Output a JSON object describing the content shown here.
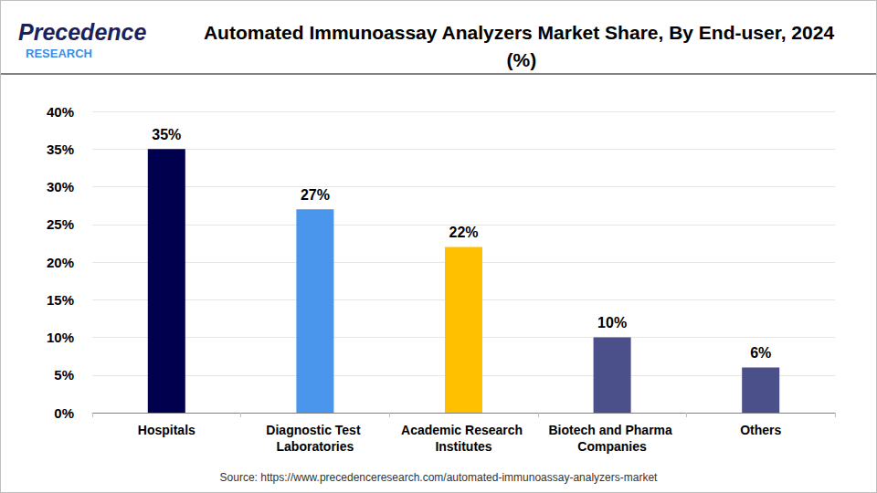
{
  "logo": {
    "name": "Precedence",
    "tagline": "RESEARCH"
  },
  "chart_data": {
    "type": "bar",
    "title": "Automated Immunoassay Analyzers Market Share, By End-user, 2024 (%)",
    "categories": [
      "Hospitals",
      "Diagnostic Test Laboratories",
      "Academic Research Institutes",
      "Biotech and Pharma Companies",
      "Others"
    ],
    "values": [
      35,
      27,
      22,
      10,
      6
    ],
    "value_labels": [
      "35%",
      "27%",
      "22%",
      "10%",
      "6%"
    ],
    "colors": [
      "#00004f",
      "#4a96ec",
      "#ffc000",
      "#4b4f8a",
      "#4b4f8a"
    ],
    "ylim": [
      0,
      40
    ],
    "yticks": [
      {
        "value": 0,
        "label": "0%"
      },
      {
        "value": 5,
        "label": "5%"
      },
      {
        "value": 10,
        "label": "10%"
      },
      {
        "value": 15,
        "label": "15%"
      },
      {
        "value": 20,
        "label": "20%"
      },
      {
        "value": 25,
        "label": "25%"
      },
      {
        "value": 30,
        "label": "30%"
      },
      {
        "value": 35,
        "label": "35%"
      },
      {
        "value": 40,
        "label": "40%"
      }
    ],
    "grid": true,
    "data_labels": true,
    "source": "Source: https://www.precedenceresearch.com/automated-immunoassay-analyzers-market"
  }
}
